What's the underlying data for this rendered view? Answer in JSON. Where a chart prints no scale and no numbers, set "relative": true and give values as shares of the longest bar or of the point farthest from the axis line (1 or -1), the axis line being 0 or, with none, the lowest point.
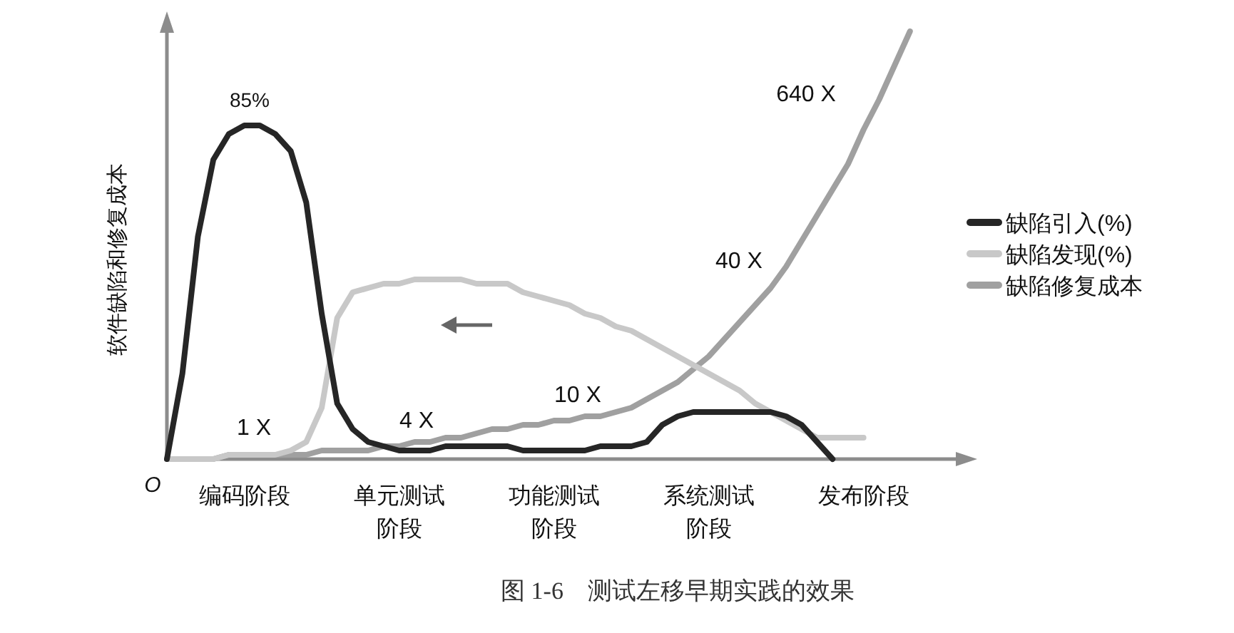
{
  "chart_data": {
    "type": "line",
    "relative": true,
    "ylabel": "软件缺陷和修复成本",
    "legend": "right",
    "categories": [
      null,
      null,
      null,
      null,
      null,
      "编码阶段",
      null,
      null,
      null,
      null,
      null,
      null,
      null,
      null,
      null,
      "单元测试阶段",
      null,
      null,
      null,
      null,
      null,
      null,
      null,
      null,
      null,
      "功能测试阶段",
      null,
      null,
      null,
      null,
      null,
      null,
      null,
      null,
      null,
      "系统测试阶段",
      null,
      null,
      null,
      null,
      null,
      null,
      null,
      null,
      null,
      "发布阶段",
      null,
      null,
      null
    ],
    "series": [
      {
        "name": "缺陷引入(%)",
        "color": "#262626",
        "values": [
          0,
          0.2,
          0.52,
          0.7,
          0.76,
          0.78,
          0.78,
          0.76,
          0.72,
          0.6,
          0.34,
          0.13,
          0.07,
          0.04,
          0.03,
          0.02,
          0.02,
          0.02,
          0.03,
          0.03,
          0.03,
          0.03,
          0.03,
          0.02,
          0.02,
          0.02,
          0.02,
          0.02,
          0.03,
          0.03,
          0.03,
          0.04,
          0.08,
          0.1,
          0.11,
          0.11,
          0.11,
          0.11,
          0.11,
          0.11,
          0.1,
          0.08,
          0.04,
          0,
          null,
          null,
          null,
          null,
          null
        ]
      },
      {
        "name": "缺陷发现(%)",
        "color": "#c8c8c8",
        "values": [
          0,
          0,
          0,
          0,
          0.01,
          0.01,
          0.01,
          0.01,
          0.02,
          0.04,
          0.12,
          0.33,
          0.39,
          0.4,
          0.41,
          0.41,
          0.42,
          0.42,
          0.42,
          0.42,
          0.41,
          0.41,
          0.41,
          0.39,
          0.38,
          0.37,
          0.36,
          0.34,
          0.33,
          0.31,
          0.3,
          0.28,
          0.26,
          0.24,
          0.22,
          0.2,
          0.18,
          0.16,
          0.13,
          0.11,
          0.09,
          0.07,
          0.05,
          0.05,
          0.05,
          0.05,
          null,
          null,
          null
        ]
      },
      {
        "name": "缺陷修复成本",
        "color": "#a0a0a0",
        "values": [
          0,
          0,
          0,
          0,
          0.01,
          0.01,
          0.01,
          0.01,
          0.01,
          0.01,
          0.02,
          0.02,
          0.02,
          0.02,
          0.03,
          0.03,
          0.04,
          0.04,
          0.05,
          0.05,
          0.06,
          0.07,
          0.07,
          0.08,
          0.08,
          0.09,
          0.09,
          0.1,
          0.1,
          0.11,
          0.12,
          0.14,
          0.16,
          0.18,
          0.21,
          0.24,
          0.28,
          0.32,
          0.36,
          0.4,
          0.45,
          0.51,
          0.57,
          0.63,
          0.69,
          0.77,
          0.84,
          0.92,
          1.0
        ]
      }
    ],
    "annotations": [
      "85%",
      "1 X",
      "4 X",
      "10 X",
      "40 X",
      "640 X",
      "O",
      "图 1-6　测试左移早期实践的效果"
    ]
  }
}
